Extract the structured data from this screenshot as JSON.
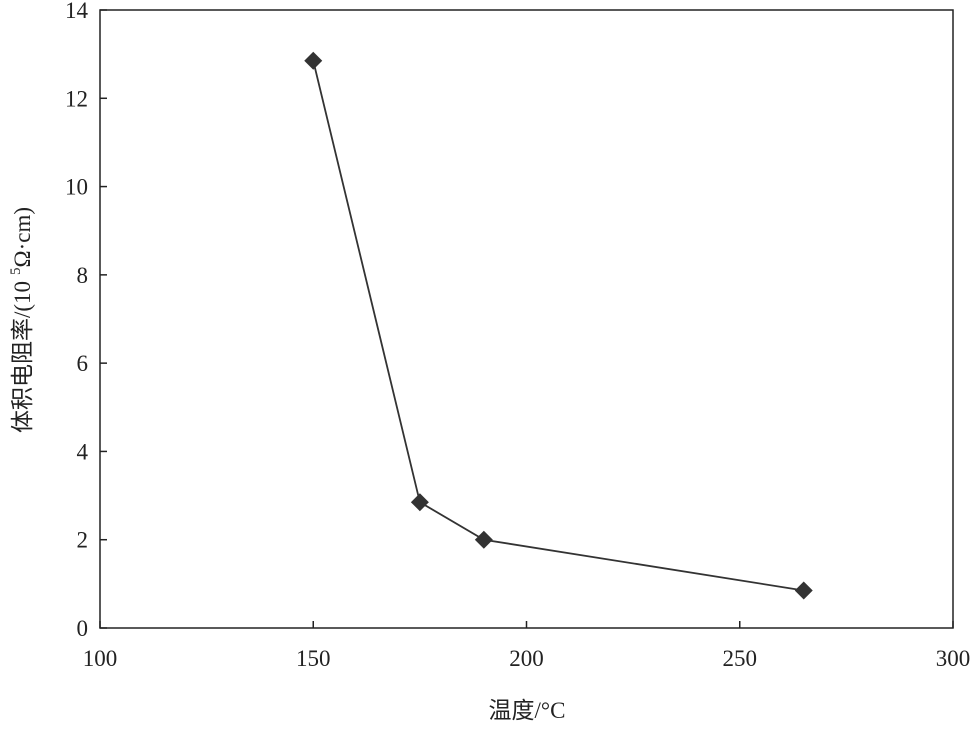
{
  "chart_data": {
    "type": "line",
    "x_label": "温度/°C",
    "y_label": [
      "体积电阻率/(10",
      "5",
      "Ω·cm)"
    ],
    "x": [
      150,
      175,
      190,
      265
    ],
    "series": [
      {
        "color": "#333333",
        "values": [
          12.85,
          2.85,
          2.0,
          0.85
        ]
      }
    ],
    "xlim": [
      100,
      300
    ],
    "xticks": [
      100,
      150,
      200,
      250,
      300
    ],
    "ylim": [
      0,
      14
    ],
    "yticks": [
      0,
      2,
      4,
      6,
      8,
      10,
      12,
      14
    ],
    "marker": "diamond"
  }
}
